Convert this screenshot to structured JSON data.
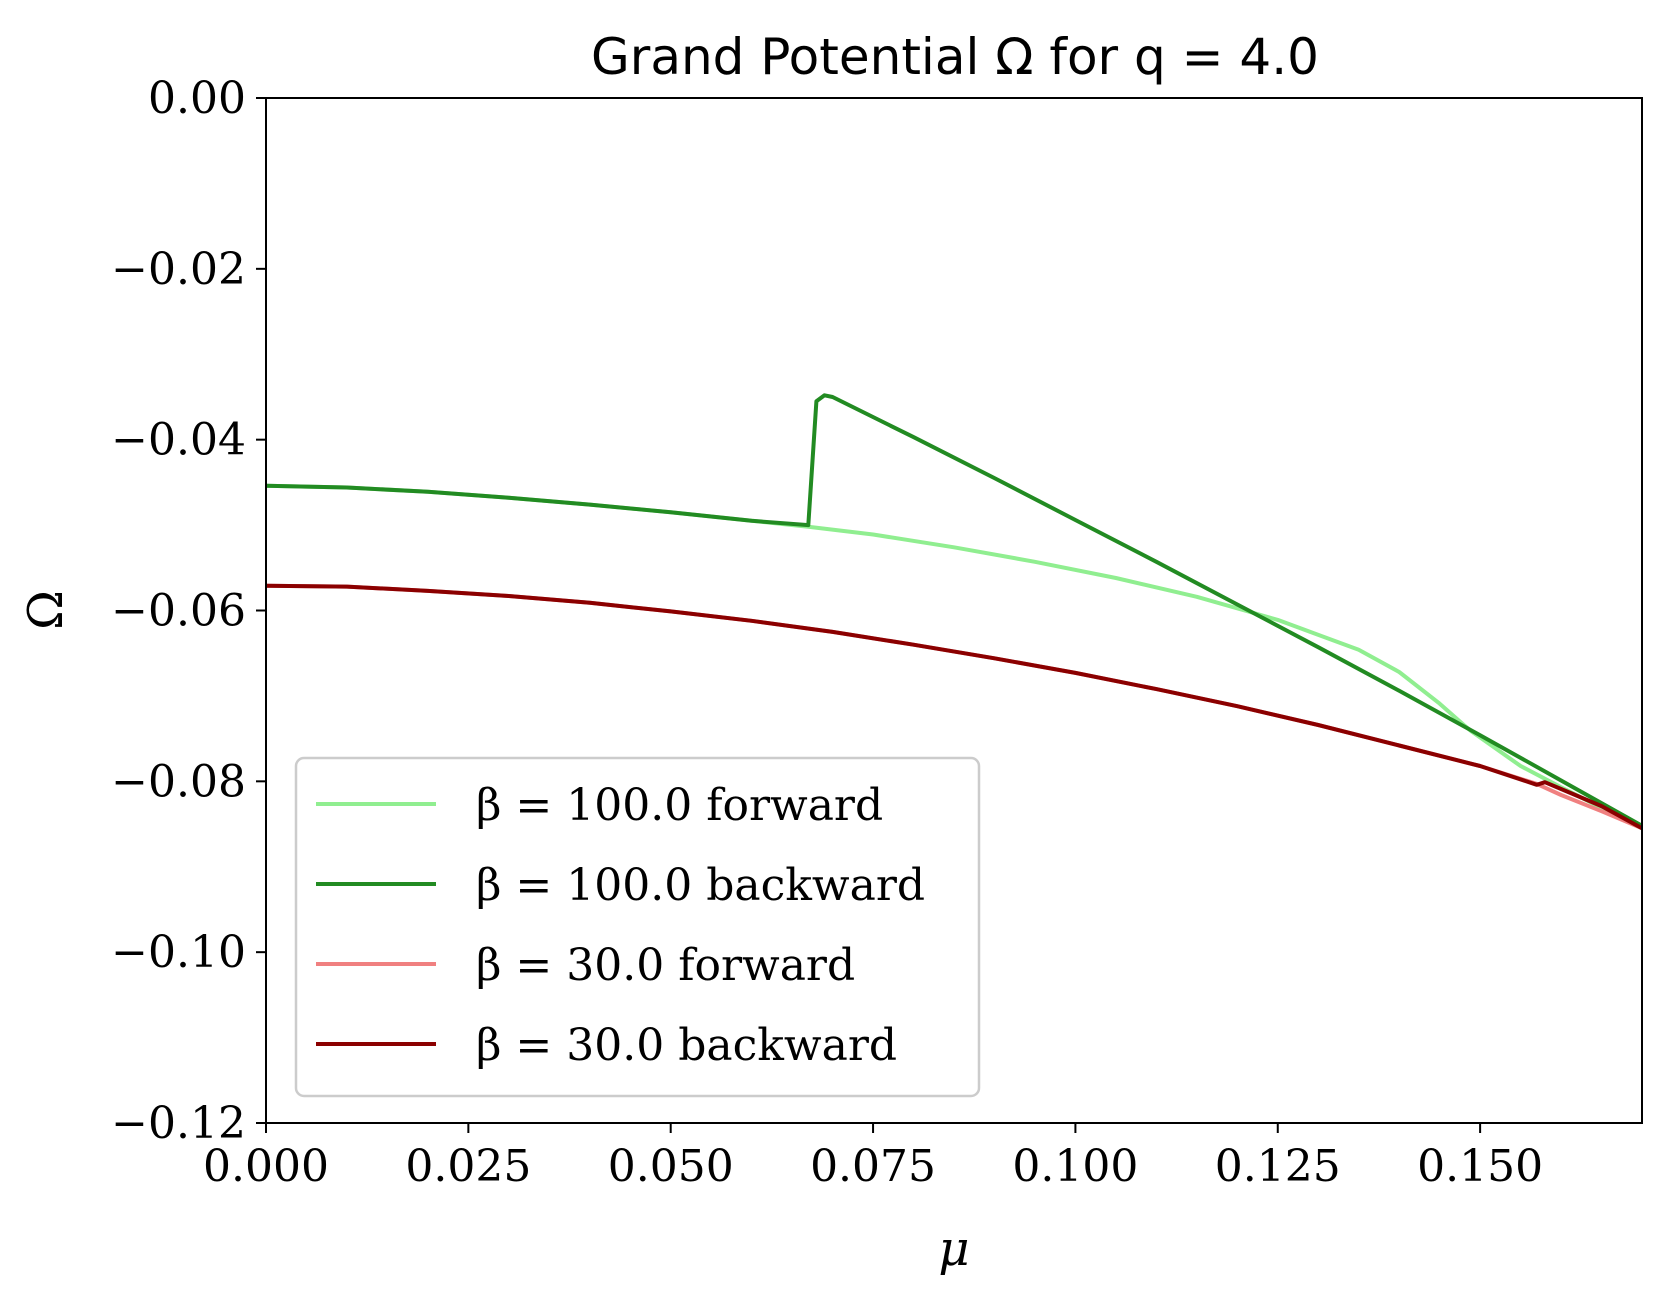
{
  "chart_data": {
    "type": "line",
    "title": "Grand Potential Ω for q = 4.0",
    "xlabel": "μ",
    "ylabel": "Ω",
    "xlim": [
      0.0,
      0.17
    ],
    "ylim": [
      -0.12,
      0.0
    ],
    "xticks": [
      0.0,
      0.025,
      0.05,
      0.075,
      0.1,
      0.125,
      0.15
    ],
    "xtick_labels": [
      "0.000",
      "0.025",
      "0.050",
      "0.075",
      "0.100",
      "0.125",
      "0.150"
    ],
    "yticks": [
      0.0,
      -0.02,
      -0.04,
      -0.06,
      -0.08,
      -0.1,
      -0.12
    ],
    "ytick_labels": [
      "0.00",
      "−0.02",
      "−0.04",
      "−0.06",
      "−0.08",
      "−0.10",
      "−0.12"
    ],
    "grid": false,
    "legend_position": "lower-left",
    "series": [
      {
        "name": "β = 100.0 forward",
        "color": "#90ee90",
        "x": [
          0.0,
          0.01,
          0.02,
          0.03,
          0.04,
          0.05,
          0.06,
          0.067,
          0.075,
          0.085,
          0.095,
          0.105,
          0.115,
          0.125,
          0.135,
          0.14,
          0.145,
          0.148,
          0.149,
          0.155,
          0.16,
          0.165,
          0.17
        ],
        "y": [
          -0.0454,
          -0.0456,
          -0.0461,
          -0.0468,
          -0.0476,
          -0.0485,
          -0.0495,
          -0.0502,
          -0.0511,
          -0.0526,
          -0.0543,
          -0.0562,
          -0.0584,
          -0.0611,
          -0.0646,
          -0.0672,
          -0.0709,
          -0.0734,
          -0.0742,
          -0.0782,
          -0.0807,
          -0.0831,
          -0.0852
        ]
      },
      {
        "name": "β = 100.0 backward",
        "color": "#228b22",
        "x": [
          0.0,
          0.01,
          0.02,
          0.03,
          0.04,
          0.05,
          0.06,
          0.067,
          0.068,
          0.069,
          0.07,
          0.08,
          0.09,
          0.1,
          0.11,
          0.12,
          0.13,
          0.14,
          0.15,
          0.16,
          0.17
        ],
        "y": [
          -0.0454,
          -0.0456,
          -0.0461,
          -0.0468,
          -0.0476,
          -0.0485,
          -0.0495,
          -0.05,
          -0.0355,
          -0.0348,
          -0.035,
          -0.0397,
          -0.0445,
          -0.0494,
          -0.0543,
          -0.0593,
          -0.0643,
          -0.0694,
          -0.0746,
          -0.0799,
          -0.0852
        ]
      },
      {
        "name": "β = 30.0 forward",
        "color": "#f08080",
        "x": [
          0.0,
          0.01,
          0.02,
          0.03,
          0.04,
          0.05,
          0.06,
          0.07,
          0.08,
          0.09,
          0.1,
          0.11,
          0.12,
          0.13,
          0.14,
          0.15,
          0.157,
          0.16,
          0.165,
          0.17
        ],
        "y": [
          -0.0571,
          -0.0572,
          -0.0577,
          -0.0583,
          -0.0591,
          -0.0601,
          -0.0612,
          -0.0625,
          -0.064,
          -0.0656,
          -0.0673,
          -0.0692,
          -0.0712,
          -0.0734,
          -0.0758,
          -0.0782,
          -0.0803,
          -0.0816,
          -0.0835,
          -0.0855
        ]
      },
      {
        "name": "β = 30.0 backward",
        "color": "#8b0000",
        "x": [
          0.0,
          0.01,
          0.02,
          0.03,
          0.04,
          0.05,
          0.06,
          0.07,
          0.08,
          0.09,
          0.1,
          0.11,
          0.12,
          0.13,
          0.14,
          0.15,
          0.157,
          0.158,
          0.16,
          0.165,
          0.17
        ],
        "y": [
          -0.0571,
          -0.0572,
          -0.0577,
          -0.0583,
          -0.0591,
          -0.0601,
          -0.0612,
          -0.0625,
          -0.064,
          -0.0656,
          -0.0673,
          -0.0692,
          -0.0712,
          -0.0734,
          -0.0758,
          -0.0782,
          -0.0804,
          -0.0801,
          -0.0809,
          -0.0829,
          -0.0855
        ]
      }
    ]
  }
}
